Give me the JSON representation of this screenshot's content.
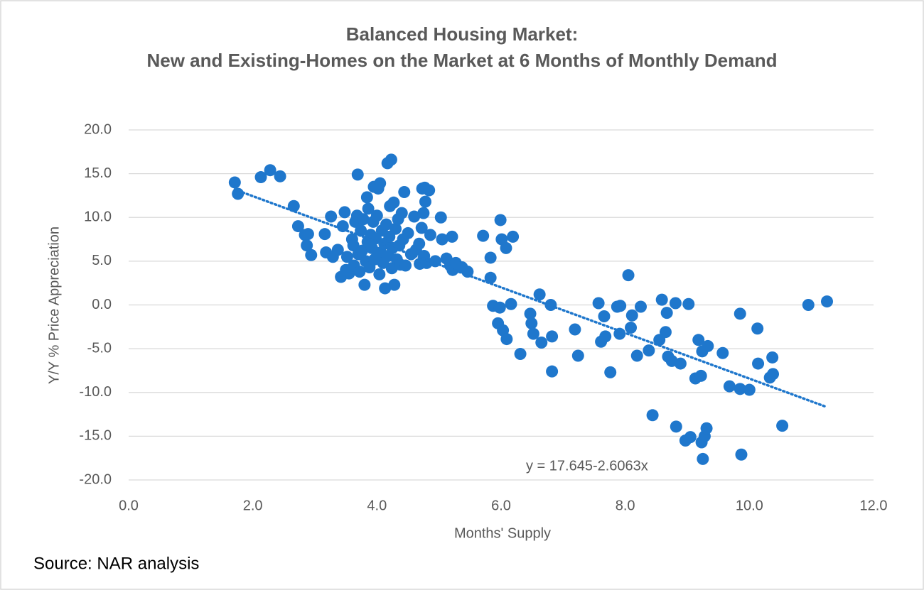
{
  "chart_data": {
    "type": "scatter",
    "title": "Balanced Housing Market:",
    "subtitle": "New and Existing-Homes on the Market at 6 Months of Monthly Demand",
    "x_label": "Months' Supply",
    "y_label": "Y/Y % Price Appreciation",
    "source": "Source: NAR analysis",
    "color": "#1f77cc",
    "grid": true,
    "xlim": [
      0,
      12
    ],
    "ylim": [
      -20,
      20
    ],
    "xticks": [
      {
        "value": 0,
        "label": "0.0"
      },
      {
        "value": 2,
        "label": "2.0"
      },
      {
        "value": 4,
        "label": "4.0"
      },
      {
        "value": 6,
        "label": "6.0"
      },
      {
        "value": 8,
        "label": "8.0"
      },
      {
        "value": 10,
        "label": "10.0"
      },
      {
        "value": 12,
        "label": "12.0"
      }
    ],
    "yticks": [
      {
        "value": -20,
        "label": "-20.0"
      },
      {
        "value": -15,
        "label": "-15.0"
      },
      {
        "value": -10,
        "label": "-10.0"
      },
      {
        "value": -5,
        "label": "-5.0"
      },
      {
        "value": 0,
        "label": "0.0"
      },
      {
        "value": 5,
        "label": "5.0"
      },
      {
        "value": 10,
        "label": "10.0"
      },
      {
        "value": 15,
        "label": "15.0"
      },
      {
        "value": 20,
        "label": "20.0"
      }
    ],
    "trendline": {
      "intercept": 17.645,
      "slope": -2.6063,
      "label": "y = 17.645-2.6063x"
    },
    "x": [
      1.71,
      1.76,
      2.13,
      2.28,
      2.44,
      2.66,
      2.73,
      2.84,
      2.89,
      2.87,
      2.94,
      3.16,
      3.18,
      3.26,
      3.29,
      3.37,
      3.42,
      3.45,
      3.48,
      3.5,
      3.52,
      3.55,
      3.6,
      3.62,
      3.63,
      3.65,
      3.68,
      3.69,
      3.7,
      3.72,
      3.74,
      3.76,
      3.78,
      3.8,
      3.82,
      3.84,
      3.85,
      3.86,
      3.88,
      3.9,
      3.92,
      3.94,
      3.95,
      3.96,
      3.98,
      4.0,
      4.02,
      4.04,
      4.05,
      4.06,
      4.08,
      4.1,
      4.12,
      4.13,
      4.15,
      4.17,
      4.18,
      4.2,
      4.21,
      4.23,
      4.24,
      4.25,
      4.27,
      4.28,
      4.3,
      4.32,
      4.34,
      4.36,
      4.38,
      4.4,
      4.42,
      4.44,
      4.46,
      4.5,
      4.55,
      4.6,
      4.63,
      4.68,
      4.69,
      4.72,
      4.73,
      4.75,
      4.76,
      4.77,
      4.78,
      4.8,
      4.84,
      4.86,
      4.94,
      5.03,
      5.05,
      5.12,
      5.18,
      5.21,
      5.22,
      5.27,
      5.37,
      5.46,
      5.71,
      5.83,
      5.83,
      5.87,
      5.95,
      5.98,
      5.99,
      6.01,
      6.03,
      6.08,
      6.09,
      6.16,
      6.19,
      6.31,
      6.47,
      6.49,
      6.52,
      6.62,
      6.65,
      6.8,
      6.82,
      6.82,
      7.19,
      7.24,
      7.57,
      7.61,
      7.66,
      7.68,
      7.76,
      7.87,
      7.91,
      7.92,
      8.05,
      8.09,
      8.11,
      8.19,
      8.25,
      8.38,
      8.44,
      8.55,
      8.59,
      8.65,
      8.67,
      8.69,
      8.75,
      8.81,
      8.82,
      8.89,
      8.97,
      9.02,
      9.05,
      9.13,
      9.18,
      9.22,
      9.23,
      9.24,
      9.25,
      9.28,
      9.31,
      9.33,
      9.57,
      9.68,
      9.85,
      9.85,
      9.87,
      10.0,
      10.13,
      10.14,
      10.33,
      10.37,
      10.38,
      10.53,
      10.95,
      11.25
    ],
    "values": [
      14.0,
      12.7,
      14.6,
      15.4,
      14.7,
      11.3,
      9.0,
      8.0,
      8.1,
      6.8,
      5.7,
      8.1,
      6.0,
      10.1,
      5.5,
      6.3,
      3.2,
      9.0,
      10.6,
      4.0,
      5.5,
      3.6,
      7.5,
      6.8,
      4.5,
      9.5,
      10.2,
      14.9,
      5.8,
      3.8,
      8.5,
      6.2,
      9.8,
      2.3,
      5.0,
      12.3,
      7.2,
      11.0,
      4.3,
      8.0,
      6.5,
      9.5,
      13.5,
      5.2,
      7.6,
      10.2,
      13.3,
      3.5,
      13.9,
      6.0,
      8.5,
      4.8,
      7.0,
      1.9,
      9.2,
      16.2,
      5.6,
      7.8,
      11.3,
      16.6,
      4.2,
      6.5,
      11.7,
      2.3,
      8.7,
      5.2,
      9.8,
      6.8,
      4.6,
      10.5,
      7.5,
      12.9,
      4.5,
      8.2,
      5.8,
      10.1,
      6.3,
      7.0,
      4.7,
      8.8,
      13.3,
      10.5,
      5.6,
      13.4,
      11.8,
      4.8,
      13.1,
      8.0,
      5.0,
      10.0,
      7.5,
      5.3,
      4.5,
      7.8,
      4.0,
      4.8,
      4.3,
      3.8,
      7.9,
      5.4,
      3.1,
      -0.1,
      -2.1,
      -0.3,
      9.7,
      7.5,
      -2.9,
      6.5,
      -3.9,
      0.1,
      7.8,
      -5.6,
      -1.0,
      -2.1,
      -3.3,
      1.2,
      -4.3,
      0.0,
      -3.6,
      -7.6,
      -2.8,
      -5.8,
      0.2,
      -4.2,
      -1.3,
      -3.6,
      -7.7,
      -0.2,
      -3.3,
      -0.1,
      3.4,
      -2.6,
      -1.2,
      -5.8,
      -0.2,
      -5.2,
      -12.6,
      -4.0,
      0.6,
      -3.1,
      -0.9,
      -5.9,
      -6.4,
      0.2,
      -13.9,
      -6.7,
      -15.5,
      0.1,
      -15.1,
      -8.4,
      -4.0,
      -8.1,
      -15.7,
      -5.3,
      -17.6,
      -15.0,
      -14.1,
      -4.7,
      -5.5,
      -9.3,
      -9.6,
      -1.0,
      -17.1,
      -9.7,
      -2.7,
      -6.7,
      -8.3,
      -6.0,
      -7.9,
      -13.8,
      0.0,
      0.4
    ]
  }
}
